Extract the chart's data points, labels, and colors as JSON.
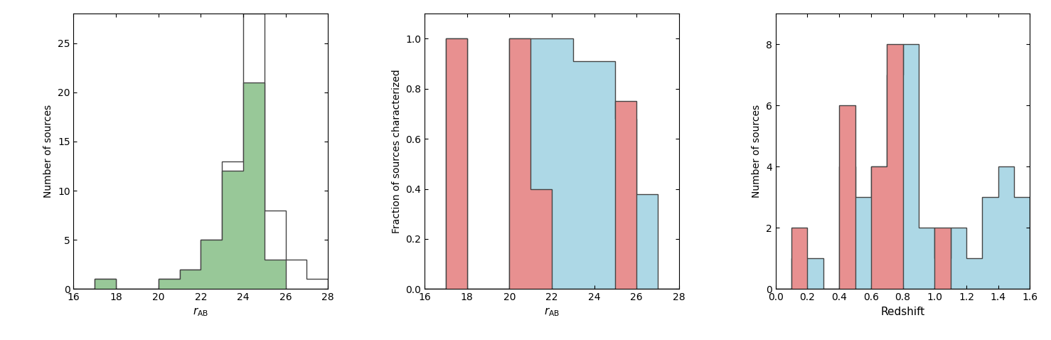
{
  "plot1": {
    "xlabel": "r_AB",
    "ylabel": "Number of sources",
    "xlim": [
      16,
      28
    ],
    "ylim": [
      0,
      28
    ],
    "yticks": [
      0,
      5,
      10,
      15,
      20,
      25
    ],
    "xticks": [
      16,
      18,
      20,
      22,
      24,
      26,
      28
    ],
    "survey_bins": [
      16,
      17,
      18,
      19,
      20,
      21,
      22,
      23,
      24,
      25,
      26,
      27,
      28
    ],
    "survey_counts": [
      0,
      1,
      0,
      0,
      1,
      2,
      5,
      13,
      28,
      8,
      3,
      1
    ],
    "sample_bins": [
      16,
      17,
      18,
      19,
      20,
      21,
      22,
      23,
      24,
      25,
      26,
      27,
      28
    ],
    "sample_counts": [
      0,
      1,
      0,
      0,
      1,
      2,
      5,
      12,
      21,
      3,
      0,
      0
    ],
    "survey_facecolor": "#ffffff",
    "survey_edgecolor": "#444444",
    "sample_facecolor": "#98c898",
    "sample_edgecolor": "#444444"
  },
  "plot2": {
    "xlabel": "r_AB",
    "ylabel": "Fraction of sources characterized",
    "xlim": [
      16,
      28
    ],
    "ylim": [
      0.0,
      1.1
    ],
    "yticks": [
      0.0,
      0.2,
      0.4,
      0.6,
      0.8,
      1.0
    ],
    "xticks": [
      16,
      18,
      20,
      22,
      24,
      26,
      28
    ],
    "bins": [
      16,
      17,
      18,
      19,
      20,
      21,
      22,
      23,
      24,
      25,
      26,
      27,
      28
    ],
    "blue_counts": [
      0.0,
      1.0,
      0.0,
      0.0,
      1.0,
      1.0,
      1.0,
      0.91,
      0.91,
      0.68,
      0.38,
      0.0
    ],
    "pink_counts": [
      0.0,
      1.0,
      0.0,
      0.0,
      1.0,
      0.4,
      0.0,
      0.0,
      0.0,
      0.75,
      0.0,
      0.0
    ],
    "blue_facecolor": "#add8e6",
    "blue_edgecolor": "#444444",
    "pink_facecolor": "#e89090",
    "pink_edgecolor": "#444444"
  },
  "plot3": {
    "xlabel": "Redshift",
    "ylabel": "Number of sources",
    "xlim": [
      0.0,
      1.6
    ],
    "ylim": [
      0,
      9
    ],
    "yticks": [
      0,
      2,
      4,
      6,
      8
    ],
    "xticks": [
      0.0,
      0.2,
      0.4,
      0.6,
      0.8,
      1.0,
      1.2,
      1.4,
      1.6
    ],
    "bins": [
      0.0,
      0.1,
      0.2,
      0.3,
      0.4,
      0.5,
      0.6,
      0.7,
      0.8,
      0.9,
      1.0,
      1.1,
      1.2,
      1.3,
      1.4,
      1.5,
      1.6
    ],
    "blue_counts": [
      0,
      1,
      1,
      0,
      4,
      3,
      4,
      7,
      8,
      2,
      1,
      2,
      1,
      3,
      4,
      3
    ],
    "pink_counts": [
      0,
      2,
      0,
      0,
      6,
      0,
      4,
      8,
      0,
      0,
      2,
      0,
      0,
      0,
      0,
      0
    ],
    "blue_facecolor": "#add8e6",
    "blue_edgecolor": "#444444",
    "pink_facecolor": "#e89090",
    "pink_edgecolor": "#444444"
  }
}
